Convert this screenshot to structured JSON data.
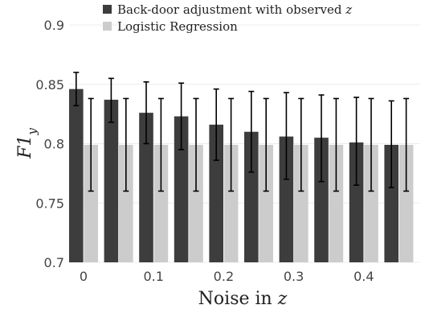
{
  "chart_data": {
    "type": "bar",
    "xlabel_text": "Noise in ",
    "xlabel_var": "z",
    "ylabel_main": "F1",
    "ylabel_sub": "y",
    "ylim": [
      0.7,
      0.9
    ],
    "yticks": [
      "0.7",
      "0.75",
      "0.8",
      "0.85",
      "0.9"
    ],
    "ytick_values": [
      0.7,
      0.75,
      0.8,
      0.85,
      0.9
    ],
    "xticks": [
      "0",
      "0.1",
      "0.2",
      "0.3",
      "0.4"
    ],
    "xtick_positions": [
      0,
      2,
      4,
      6,
      8
    ],
    "categories": [
      0,
      0.05,
      0.1,
      0.15,
      0.2,
      0.25,
      0.3,
      0.35,
      0.4,
      0.45
    ],
    "grid": true,
    "legend_position": "top",
    "series": [
      {
        "name": "Back-door adjustment with observed z",
        "color": "#3d3d3d",
        "values": [
          0.846,
          0.837,
          0.826,
          0.823,
          0.816,
          0.81,
          0.806,
          0.805,
          0.801,
          0.799
        ],
        "err_low": [
          0.832,
          0.818,
          0.8,
          0.795,
          0.786,
          0.776,
          0.77,
          0.768,
          0.765,
          0.763
        ],
        "err_high": [
          0.86,
          0.855,
          0.852,
          0.851,
          0.846,
          0.844,
          0.843,
          0.841,
          0.839,
          0.836
        ]
      },
      {
        "name": "Logistic Regression",
        "color": "#cccccc",
        "values": [
          0.799,
          0.799,
          0.799,
          0.799,
          0.799,
          0.799,
          0.799,
          0.799,
          0.799,
          0.799
        ],
        "err_low": [
          0.76,
          0.76,
          0.76,
          0.76,
          0.76,
          0.76,
          0.76,
          0.76,
          0.76,
          0.76
        ],
        "err_high": [
          0.838,
          0.838,
          0.838,
          0.838,
          0.838,
          0.838,
          0.838,
          0.838,
          0.838,
          0.838
        ]
      }
    ]
  },
  "legend": {
    "item1_text": "Back-door adjustment with observed ",
    "item1_var": "z",
    "item2_text": "Logistic Regression"
  }
}
